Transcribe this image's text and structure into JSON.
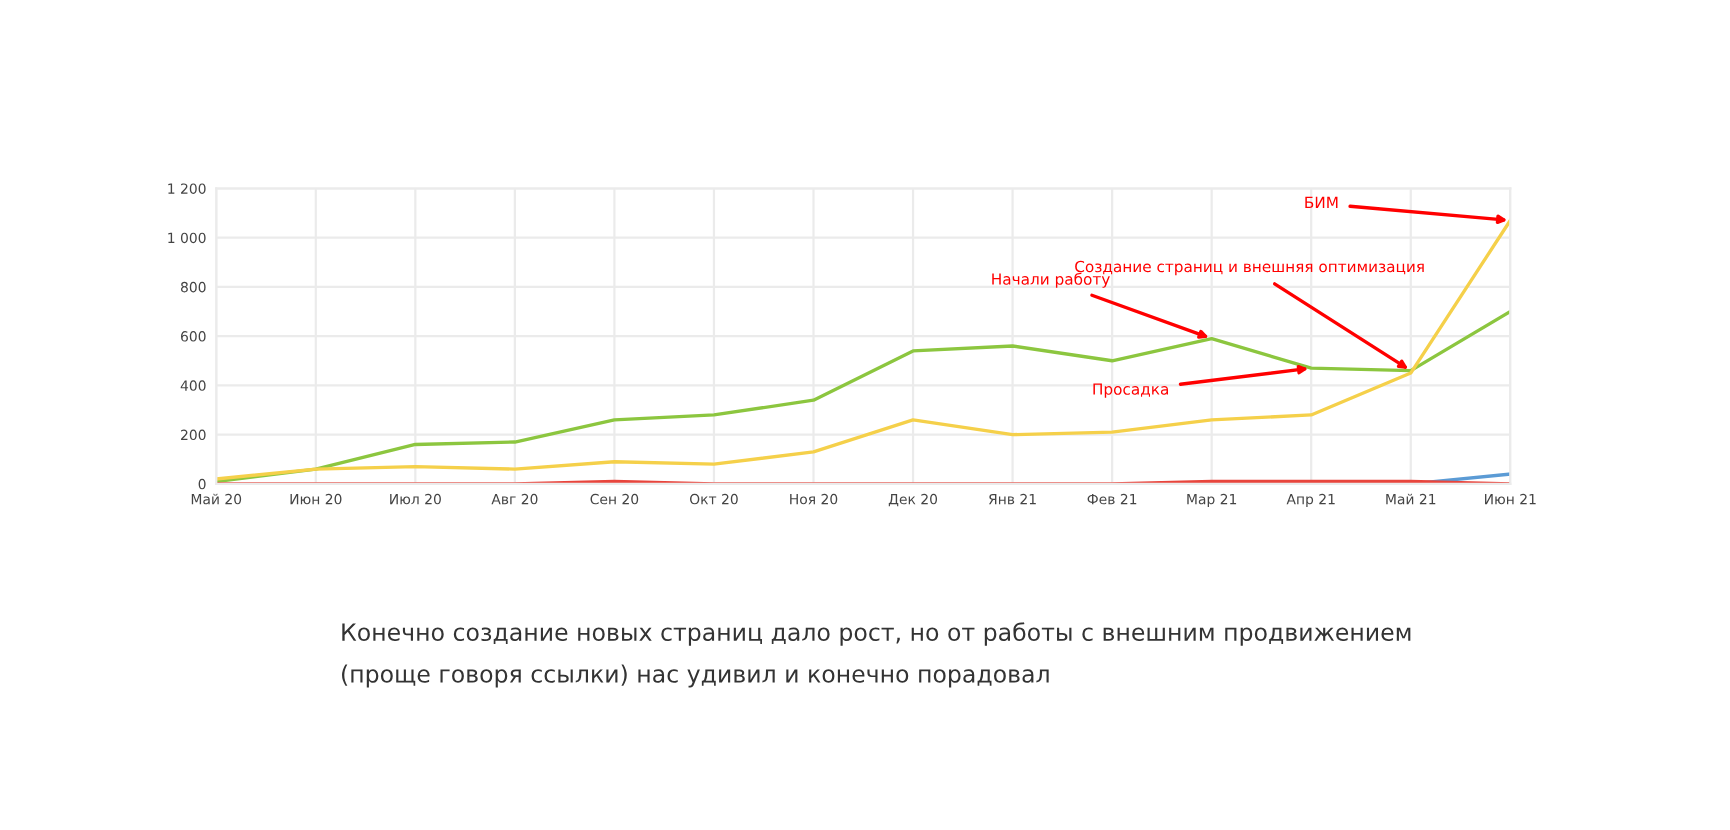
{
  "chart_data": {
    "type": "line",
    "categories": [
      "Май 20",
      "Июн 20",
      "Июл 20",
      "Авг 20",
      "Сен 20",
      "Окт 20",
      "Ноя 20",
      "Дек 20",
      "Янв 21",
      "Фев 21",
      "Мар 21",
      "Апр 21",
      "Май 21",
      "Июн 21"
    ],
    "series": [
      {
        "color": "#8cc63f",
        "values": [
          10,
          60,
          160,
          170,
          260,
          280,
          340,
          540,
          560,
          500,
          590,
          470,
          460,
          700
        ]
      },
      {
        "color": "#f5d04a",
        "values": [
          20,
          60,
          70,
          60,
          90,
          80,
          130,
          260,
          200,
          210,
          260,
          280,
          450,
          1070
        ]
      },
      {
        "color": "#5b9bd5",
        "values": [
          null,
          null,
          null,
          null,
          null,
          null,
          null,
          null,
          null,
          null,
          null,
          null,
          0,
          40
        ]
      },
      {
        "color": "#e8453c",
        "values": [
          0,
          0,
          0,
          0,
          10,
          0,
          0,
          0,
          0,
          0,
          10,
          10,
          10,
          0
        ]
      }
    ],
    "ylim": [
      0,
      1200
    ],
    "yticks": [
      0,
      200,
      400,
      600,
      800,
      {
        "value": 1000,
        "label": "1 000"
      },
      {
        "value": 1200,
        "label": "1 200"
      }
    ],
    "grid": true,
    "annotations": [
      {
        "text": "Начали работу",
        "x": "Мар 21",
        "y": 590
      },
      {
        "text": "Просадка",
        "x": "Апр 21",
        "y": 470
      },
      {
        "text": "Создание страниц и внешняя оптимизация",
        "x": "Май 21",
        "y": 460
      },
      {
        "text": "БИМ",
        "x": "Июн 21",
        "y": 1070
      },
      "Конечно создание новых страниц дало рост, но от работы с внешним продвижением",
      "(проще говоря ссылки) нас удивил и конечно порадовал"
    ]
  }
}
